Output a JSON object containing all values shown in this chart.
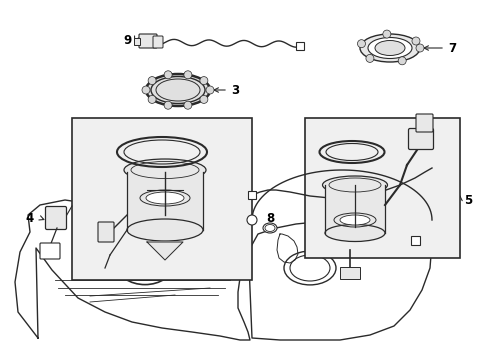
{
  "bg_color": "#ffffff",
  "line_color": "#2a2a2a",
  "fig_width": 4.89,
  "fig_height": 3.6,
  "dpi": 100,
  "label_fontsize": 8.5,
  "box_fill": "#f0f0f0",
  "part_fill": "#e8e8e8"
}
